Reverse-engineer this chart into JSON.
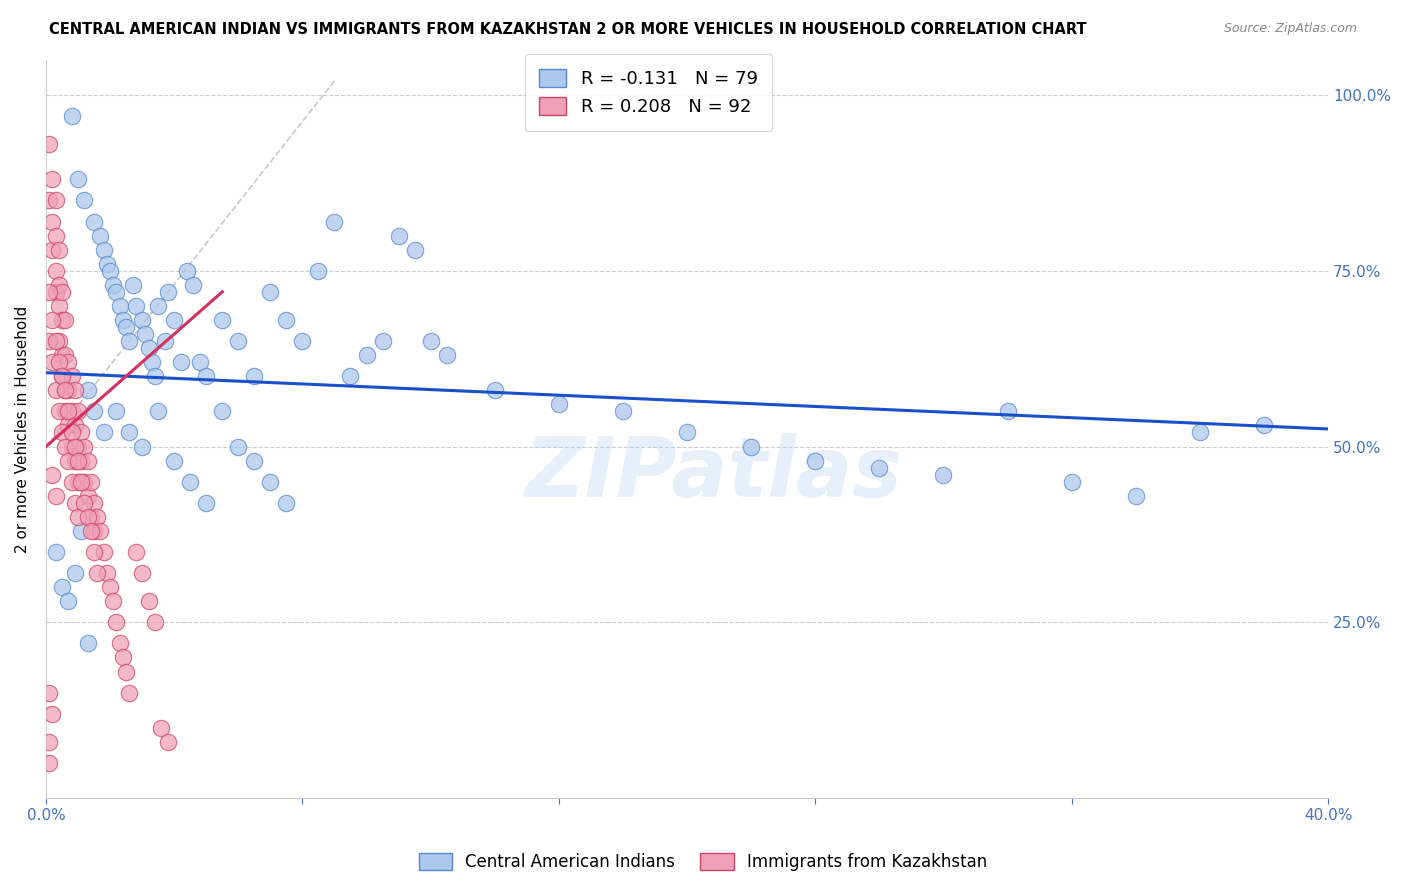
{
  "title": "CENTRAL AMERICAN INDIAN VS IMMIGRANTS FROM KAZAKHSTAN 2 OR MORE VEHICLES IN HOUSEHOLD CORRELATION CHART",
  "source": "Source: ZipAtlas.com",
  "ylabel": "2 or more Vehicles in Household",
  "xlim": [
    0.0,
    0.4
  ],
  "ylim": [
    0.0,
    1.05
  ],
  "legend_blue_r": "R = -0.131",
  "legend_blue_n": "N = 79",
  "legend_pink_r": "R = 0.208",
  "legend_pink_n": "N = 92",
  "blue_label": "Central American Indians",
  "pink_label": "Immigrants from Kazakhstan",
  "blue_color": "#adc8ed",
  "pink_color": "#f0a0b8",
  "blue_line_color": "#1a50c8",
  "pink_line_color": "#d43060",
  "watermark_text": "ZIPatlas",
  "blue_line_x0": 0.0,
  "blue_line_y0": 0.605,
  "blue_line_x1": 0.4,
  "blue_line_y1": 0.525,
  "pink_line_x0": 0.0,
  "pink_line_y0": 0.5,
  "pink_line_x1": 0.055,
  "pink_line_y1": 0.72,
  "dash_line_x0": 0.0,
  "dash_line_y0": 0.5,
  "dash_line_x1": 0.09,
  "dash_line_y1": 1.02,
  "blue_x": [
    0.008,
    0.01,
    0.012,
    0.015,
    0.017,
    0.018,
    0.019,
    0.02,
    0.021,
    0.022,
    0.023,
    0.024,
    0.025,
    0.026,
    0.027,
    0.028,
    0.03,
    0.031,
    0.032,
    0.033,
    0.034,
    0.035,
    0.037,
    0.038,
    0.04,
    0.042,
    0.044,
    0.046,
    0.048,
    0.05,
    0.055,
    0.06,
    0.065,
    0.07,
    0.075,
    0.08,
    0.085,
    0.09,
    0.095,
    0.1,
    0.105,
    0.11,
    0.115,
    0.12,
    0.125,
    0.013,
    0.015,
    0.018,
    0.022,
    0.026,
    0.03,
    0.035,
    0.04,
    0.045,
    0.05,
    0.055,
    0.06,
    0.065,
    0.07,
    0.075,
    0.14,
    0.16,
    0.18,
    0.2,
    0.22,
    0.24,
    0.26,
    0.28,
    0.3,
    0.32,
    0.34,
    0.36,
    0.38,
    0.003,
    0.005,
    0.007,
    0.009,
    0.011,
    0.013
  ],
  "blue_y": [
    0.97,
    0.88,
    0.85,
    0.82,
    0.8,
    0.78,
    0.76,
    0.75,
    0.73,
    0.72,
    0.7,
    0.68,
    0.67,
    0.65,
    0.73,
    0.7,
    0.68,
    0.66,
    0.64,
    0.62,
    0.6,
    0.7,
    0.65,
    0.72,
    0.68,
    0.62,
    0.75,
    0.73,
    0.62,
    0.6,
    0.68,
    0.65,
    0.6,
    0.72,
    0.68,
    0.65,
    0.75,
    0.82,
    0.6,
    0.63,
    0.65,
    0.8,
    0.78,
    0.65,
    0.63,
    0.58,
    0.55,
    0.52,
    0.55,
    0.52,
    0.5,
    0.55,
    0.48,
    0.45,
    0.42,
    0.55,
    0.5,
    0.48,
    0.45,
    0.42,
    0.58,
    0.56,
    0.55,
    0.52,
    0.5,
    0.48,
    0.47,
    0.46,
    0.55,
    0.45,
    0.43,
    0.52,
    0.53,
    0.35,
    0.3,
    0.28,
    0.32,
    0.38,
    0.22
  ],
  "pink_x": [
    0.001,
    0.001,
    0.002,
    0.002,
    0.002,
    0.003,
    0.003,
    0.003,
    0.003,
    0.004,
    0.004,
    0.004,
    0.004,
    0.005,
    0.005,
    0.005,
    0.005,
    0.006,
    0.006,
    0.006,
    0.006,
    0.007,
    0.007,
    0.007,
    0.008,
    0.008,
    0.008,
    0.009,
    0.009,
    0.009,
    0.01,
    0.01,
    0.01,
    0.011,
    0.011,
    0.012,
    0.012,
    0.013,
    0.013,
    0.014,
    0.014,
    0.015,
    0.015,
    0.016,
    0.017,
    0.018,
    0.019,
    0.02,
    0.021,
    0.022,
    0.023,
    0.024,
    0.025,
    0.026,
    0.028,
    0.03,
    0.032,
    0.034,
    0.036,
    0.038,
    0.001,
    0.001,
    0.002,
    0.002,
    0.003,
    0.003,
    0.004,
    0.004,
    0.005,
    0.005,
    0.006,
    0.006,
    0.007,
    0.007,
    0.008,
    0.008,
    0.009,
    0.009,
    0.01,
    0.01,
    0.011,
    0.012,
    0.013,
    0.014,
    0.015,
    0.016,
    0.002,
    0.003,
    0.001,
    0.002,
    0.001,
    0.001
  ],
  "pink_y": [
    0.93,
    0.85,
    0.88,
    0.82,
    0.78,
    0.85,
    0.8,
    0.75,
    0.72,
    0.78,
    0.73,
    0.7,
    0.65,
    0.72,
    0.68,
    0.63,
    0.6,
    0.68,
    0.63,
    0.58,
    0.55,
    0.62,
    0.58,
    0.53,
    0.6,
    0.55,
    0.5,
    0.58,
    0.53,
    0.48,
    0.55,
    0.5,
    0.45,
    0.52,
    0.48,
    0.5,
    0.45,
    0.48,
    0.43,
    0.45,
    0.4,
    0.42,
    0.38,
    0.4,
    0.38,
    0.35,
    0.32,
    0.3,
    0.28,
    0.25,
    0.22,
    0.2,
    0.18,
    0.15,
    0.35,
    0.32,
    0.28,
    0.25,
    0.1,
    0.08,
    0.72,
    0.65,
    0.68,
    0.62,
    0.65,
    0.58,
    0.62,
    0.55,
    0.6,
    0.52,
    0.58,
    0.5,
    0.55,
    0.48,
    0.52,
    0.45,
    0.5,
    0.42,
    0.48,
    0.4,
    0.45,
    0.42,
    0.4,
    0.38,
    0.35,
    0.32,
    0.46,
    0.43,
    0.15,
    0.12,
    0.08,
    0.05
  ]
}
